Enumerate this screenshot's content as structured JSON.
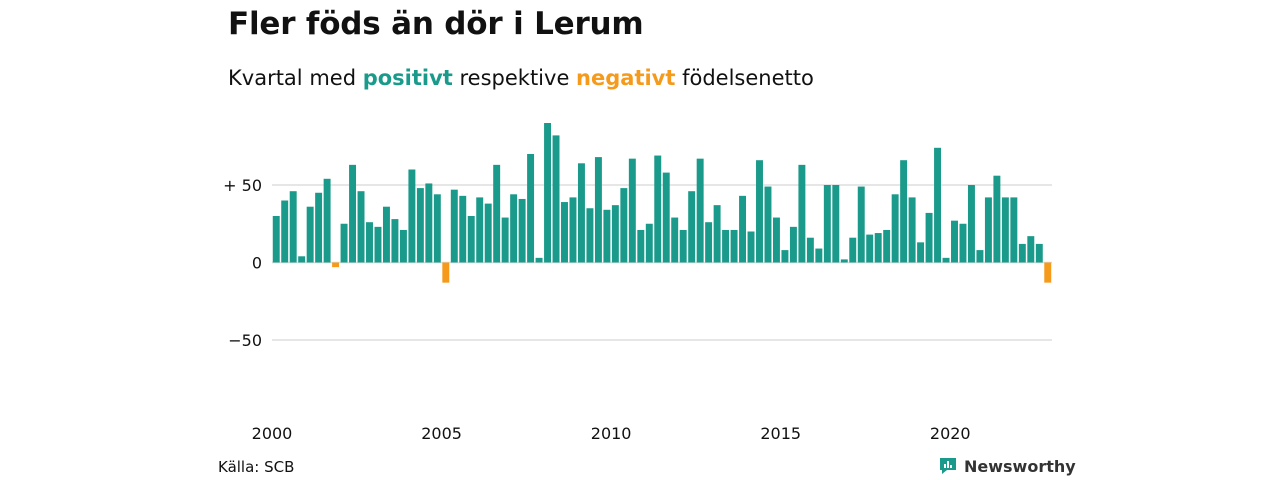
{
  "title": "Fler föds än dör i Lerum",
  "subtitle": {
    "prefix": "Kvartal med ",
    "positive_word": "positivt",
    "middle": " respektive ",
    "negative_word": "negativt",
    "suffix": " födelsenetto"
  },
  "colors": {
    "positive": "#1a9a8a",
    "negative": "#f59a1b",
    "grid": "#dddddd",
    "text": "#111111"
  },
  "source": "Källa: SCB",
  "brand": {
    "name": "Newsworthy",
    "icon": "newsworthy-logo-icon"
  },
  "chart_data": {
    "type": "bar",
    "title": "Fler föds än dör i Lerum",
    "y_ticks": [
      {
        "value": 50,
        "label": "+ 50"
      },
      {
        "value": 0,
        "label": "0"
      },
      {
        "value": -50,
        "label": "−50"
      }
    ],
    "x_ticks": [
      {
        "value": 2000,
        "label": "2000"
      },
      {
        "value": 2005,
        "label": "2005"
      },
      {
        "value": 2010,
        "label": "2010"
      },
      {
        "value": 2015,
        "label": "2015"
      },
      {
        "value": 2020,
        "label": "2020"
      }
    ],
    "x_start": 2000,
    "periods_per_year": 4,
    "ylim": [
      -50,
      90
    ],
    "grid": true,
    "values": [
      30,
      40,
      46,
      4,
      36,
      45,
      54,
      -3,
      25,
      63,
      46,
      26,
      23,
      36,
      28,
      21,
      60,
      48,
      51,
      44,
      -13,
      47,
      43,
      30,
      42,
      38,
      63,
      29,
      44,
      41,
      70,
      3,
      90,
      82,
      39,
      42,
      64,
      35,
      68,
      34,
      37,
      48,
      67,
      21,
      25,
      69,
      58,
      29,
      21,
      46,
      67,
      26,
      37,
      21,
      21,
      43,
      20,
      66,
      49,
      29,
      8,
      23,
      63,
      16,
      9,
      50,
      50,
      2,
      16,
      49,
      18,
      19,
      21,
      44,
      66,
      42,
      13,
      32,
      74,
      3,
      27,
      25,
      50,
      8,
      42,
      56,
      42,
      42,
      12,
      17,
      12,
      -13
    ]
  }
}
